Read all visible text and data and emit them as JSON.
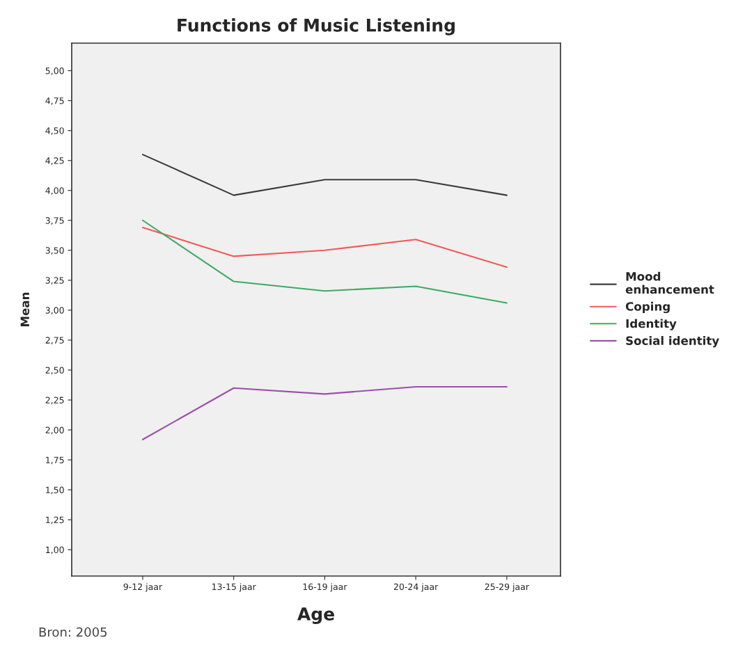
{
  "chart_data": {
    "type": "line",
    "title": "Functions of Music Listening",
    "xlabel": "Age",
    "ylabel": "Mean",
    "categories": [
      "9-12 jaar",
      "13-15 jaar",
      "16-19 jaar",
      "20-24 jaar",
      "25-29 jaar"
    ],
    "series": [
      {
        "name": "Mood enhancement",
        "color": "#3c3c3c",
        "values": [
          4.3,
          3.96,
          4.09,
          4.09,
          3.96
        ]
      },
      {
        "name": "Coping",
        "color": "#f15a5a",
        "values": [
          3.69,
          3.45,
          3.5,
          3.59,
          3.36
        ]
      },
      {
        "name": "Identity",
        "color": "#3caa64",
        "values": [
          3.75,
          3.24,
          3.16,
          3.2,
          3.06
        ]
      },
      {
        "name": "Social identity",
        "color": "#9b4fa8",
        "values": [
          1.92,
          2.35,
          2.3,
          2.36,
          2.36
        ]
      }
    ],
    "ylim": [
      0.78,
      5.23
    ],
    "yticks": [
      {
        "value": 1.0,
        "label": "1,00"
      },
      {
        "value": 1.25,
        "label": "1,25"
      },
      {
        "value": 1.5,
        "label": "1,50"
      },
      {
        "value": 1.75,
        "label": "1,75"
      },
      {
        "value": 2.0,
        "label": "2,00"
      },
      {
        "value": 2.25,
        "label": "2,25"
      },
      {
        "value": 2.5,
        "label": "2,50"
      },
      {
        "value": 2.75,
        "label": "2,75"
      },
      {
        "value": 3.0,
        "label": "3,00"
      },
      {
        "value": 3.25,
        "label": "3,25"
      },
      {
        "value": 3.5,
        "label": "3,50"
      },
      {
        "value": 3.75,
        "label": "3,75"
      },
      {
        "value": 4.0,
        "label": "4,00"
      },
      {
        "value": 4.25,
        "label": "4,25"
      },
      {
        "value": 4.5,
        "label": "4,50"
      },
      {
        "value": 4.75,
        "label": "4,75"
      },
      {
        "value": 5.0,
        "label": "5,00"
      }
    ],
    "legend": "right",
    "grid": false,
    "marker": "none",
    "line_style": "solid",
    "annotations": [
      "Bron: 2005"
    ]
  }
}
